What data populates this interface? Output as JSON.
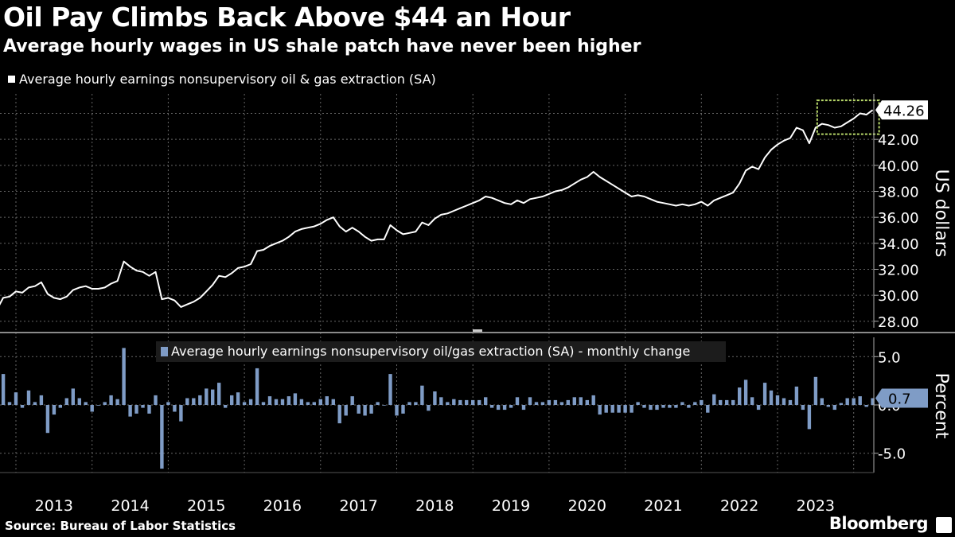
{
  "title": "Oil Pay Climbs Back Above $44 an Hour",
  "subtitle": "Average hourly wages in US shale patch have never been higher",
  "source": "Source: Bureau of Labor Statistics",
  "brand": "Bloomberg",
  "colors": {
    "line": "#ffffff",
    "bar": "#7f9cc6",
    "highlight": "#b8d96a",
    "grid": "#666666"
  },
  "chart_data": [
    {
      "type": "line",
      "legend": "Average hourly earnings nonsupervisory oil & gas extraction (SA)",
      "ylabel": "US dollars",
      "ylim": [
        27.5,
        45.5
      ],
      "yticks": [
        28,
        30,
        32,
        34,
        36,
        38,
        40,
        42
      ],
      "ytick_labels": [
        "28.00",
        "30.00",
        "32.00",
        "34.00",
        "36.00",
        "38.00",
        "40.00",
        "42.00"
      ],
      "last_value_label": "44.26",
      "x_start": "2012-09",
      "interval": "monthly",
      "values": [
        29.0,
        28.9,
        29.8,
        29.9,
        30.3,
        30.2,
        30.6,
        30.7,
        31.0,
        30.1,
        29.8,
        29.7,
        29.9,
        30.4,
        30.6,
        30.7,
        30.5,
        30.5,
        30.6,
        30.9,
        31.1,
        32.6,
        32.2,
        31.9,
        31.8,
        31.5,
        31.8,
        29.7,
        29.8,
        29.6,
        29.1,
        29.3,
        29.5,
        29.8,
        30.3,
        30.8,
        31.5,
        31.4,
        31.7,
        32.1,
        32.2,
        32.4,
        33.4,
        33.5,
        33.8,
        34.0,
        34.2,
        34.5,
        34.9,
        35.1,
        35.2,
        35.3,
        35.5,
        35.8,
        36.0,
        35.3,
        34.9,
        35.2,
        34.9,
        34.5,
        34.2,
        34.3,
        34.3,
        35.4,
        35.0,
        34.7,
        34.8,
        34.9,
        35.6,
        35.4,
        35.9,
        36.2,
        36.3,
        36.5,
        36.7,
        36.9,
        37.1,
        37.3,
        37.6,
        37.5,
        37.3,
        37.1,
        37.0,
        37.3,
        37.1,
        37.4,
        37.5,
        37.6,
        37.8,
        38.0,
        38.1,
        38.3,
        38.6,
        38.9,
        39.1,
        39.5,
        39.1,
        38.8,
        38.5,
        38.2,
        37.9,
        37.6,
        37.7,
        37.6,
        37.4,
        37.2,
        37.1,
        37.0,
        36.9,
        37.0,
        36.9,
        37.0,
        37.2,
        36.9,
        37.3,
        37.5,
        37.7,
        37.9,
        38.6,
        39.6,
        39.9,
        39.7,
        40.6,
        41.2,
        41.6,
        41.9,
        42.1,
        42.9,
        42.7,
        41.7,
        42.9,
        43.2,
        43.1,
        42.9,
        43.0,
        43.3,
        43.6,
        44.0,
        43.9,
        44.26
      ]
    },
    {
      "type": "bar",
      "legend": "Average hourly earnings nonsupervisory oil/gas extraction (SA) - monthly change",
      "ylabel": "Percent",
      "ylim": [
        -7,
        7
      ],
      "yticks": [
        -5,
        0,
        5
      ],
      "ytick_labels": [
        "-5.0",
        "0.0",
        "5.0"
      ],
      "last_value_label": "0.7",
      "values": [
        -0.2,
        -0.3,
        3.2,
        0.3,
        1.3,
        -0.3,
        1.5,
        0.3,
        1.0,
        -2.9,
        -1.0,
        -0.3,
        0.7,
        1.7,
        0.7,
        0.3,
        -0.7,
        0.0,
        0.3,
        1.0,
        0.6,
        5.9,
        -1.2,
        -0.9,
        -0.3,
        -0.9,
        1.0,
        -6.6,
        0.3,
        -0.7,
        -1.7,
        0.7,
        0.7,
        1.0,
        1.7,
        1.6,
        2.3,
        -0.3,
        1.0,
        1.3,
        0.3,
        0.6,
        3.8,
        0.3,
        0.9,
        0.6,
        0.6,
        0.9,
        1.2,
        0.6,
        0.3,
        0.3,
        0.6,
        0.9,
        0.6,
        -1.9,
        -1.1,
        0.9,
        -0.9,
        -1.1,
        -0.9,
        0.3,
        0.0,
        3.2,
        -1.1,
        -0.9,
        0.3,
        0.3,
        2.0,
        -0.6,
        1.4,
        0.8,
        0.3,
        0.6,
        0.5,
        0.5,
        0.5,
        0.5,
        0.8,
        -0.3,
        -0.5,
        -0.5,
        -0.3,
        0.8,
        -0.5,
        0.8,
        0.3,
        0.3,
        0.5,
        0.5,
        0.3,
        0.5,
        0.8,
        0.8,
        0.5,
        1.0,
        -1.0,
        -0.8,
        -0.8,
        -0.8,
        -0.8,
        -0.8,
        0.3,
        -0.3,
        -0.5,
        -0.5,
        -0.3,
        -0.3,
        -0.3,
        0.3,
        -0.3,
        0.3,
        0.5,
        -0.8,
        1.1,
        0.5,
        0.5,
        0.5,
        1.8,
        2.6,
        0.8,
        -0.5,
        2.3,
        1.5,
        1.0,
        0.7,
        0.5,
        1.9,
        -0.5,
        -2.5,
        2.9,
        0.7,
        -0.2,
        -0.5,
        0.2,
        0.7,
        0.7,
        0.9,
        -0.2,
        0.7
      ]
    }
  ],
  "x_axis": {
    "years": [
      "2013",
      "2014",
      "2015",
      "2016",
      "2017",
      "2018",
      "2019",
      "2020",
      "2021",
      "2022",
      "2023"
    ]
  }
}
